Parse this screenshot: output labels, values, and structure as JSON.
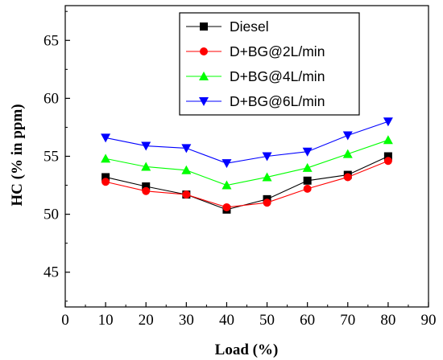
{
  "chart_data": {
    "type": "line",
    "xlabel": "Load (%)",
    "ylabel": "HC (% in ppm)",
    "xlim": [
      0,
      90
    ],
    "ylim": [
      42,
      68
    ],
    "x_ticks": [
      0,
      10,
      20,
      30,
      40,
      50,
      60,
      70,
      80,
      90
    ],
    "y_ticks": [
      45,
      50,
      55,
      60,
      65
    ],
    "grid": false,
    "legend_position": "top-right",
    "x": [
      10,
      20,
      30,
      40,
      50,
      60,
      70,
      80
    ],
    "series": [
      {
        "name": "Diesel",
        "color": "#000000",
        "marker": "square",
        "values": [
          53.2,
          52.4,
          51.7,
          50.4,
          51.3,
          52.9,
          53.4,
          55.0
        ]
      },
      {
        "name": "D+BG@2L/min",
        "color": "#ff0000",
        "marker": "circle",
        "values": [
          52.8,
          52.0,
          51.7,
          50.6,
          51.0,
          52.2,
          53.2,
          54.6
        ]
      },
      {
        "name": "D+BG@4L/min",
        "color": "#00ff00",
        "marker": "triangle-up",
        "values": [
          54.8,
          54.1,
          53.8,
          52.5,
          53.2,
          54.0,
          55.2,
          56.4
        ]
      },
      {
        "name": "D+BG@6L/min",
        "color": "#0000ff",
        "marker": "triangle-down",
        "values": [
          56.6,
          55.9,
          55.7,
          54.4,
          55.0,
          55.4,
          56.8,
          58.0
        ]
      }
    ]
  }
}
